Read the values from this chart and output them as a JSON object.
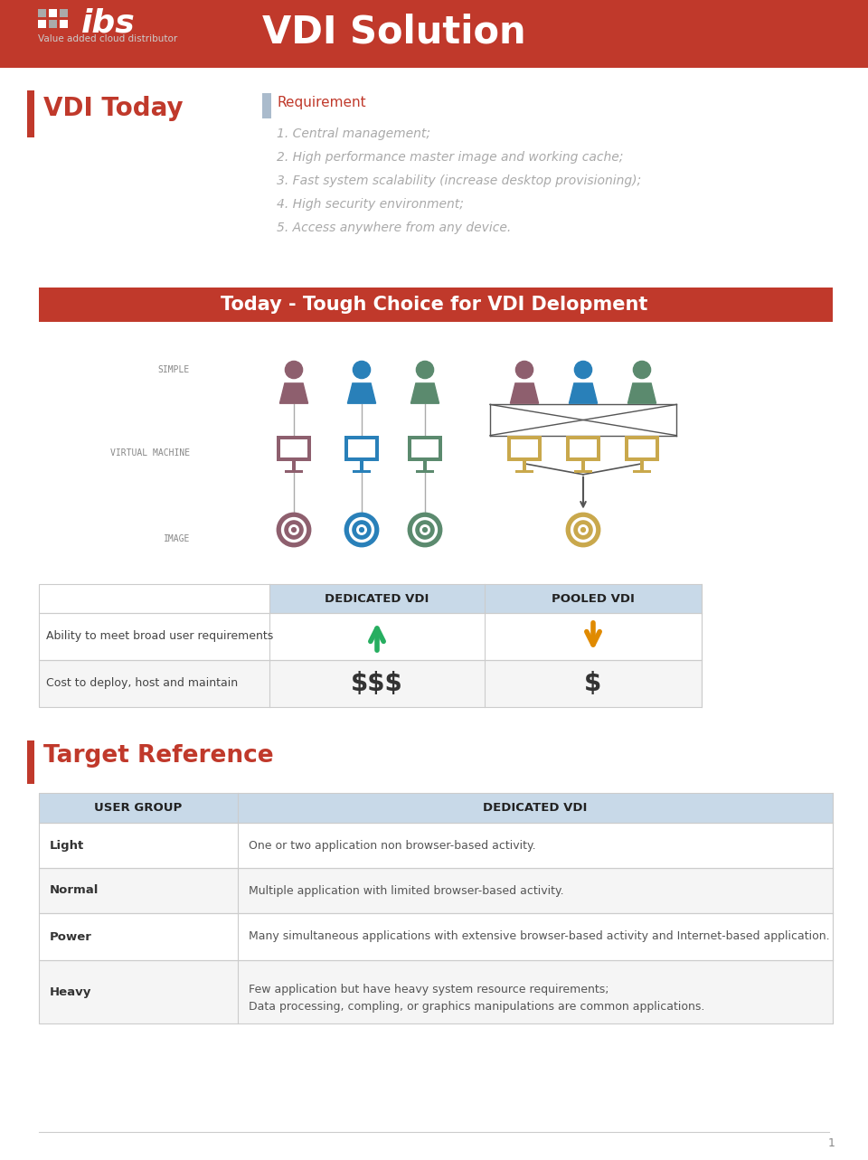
{
  "title": "VDI Solution",
  "subtitle_tag": "Value added cloud distributor",
  "header_bg": "#c0392b",
  "header_text_color": "#ffffff",
  "section1_title": "VDI Today",
  "section1_accent": "#c0392b",
  "req_title": "Requirement",
  "req_items": [
    "1. Central management;",
    "2. High performance master image and working cache;",
    "3. Fast system scalability (increase desktop provisioning);",
    "4. High security environment;",
    "5. Access anywhere from any device."
  ],
  "tough_choice_title": "Today - Tough Choice for VDI Delopment",
  "tough_bg": "#c0392b",
  "tough_text_color": "#ffffff",
  "row_labels": [
    "SIMPLE",
    "VIRTUAL MACHINE",
    "IMAGE"
  ],
  "dedicated_label": "DEDICATED VDI",
  "pooled_label": "POOLED VDI",
  "ability_label": "Ability to meet broad user requirements",
  "cost_label": "Cost to deploy, host and maintain",
  "dedicated_arrow_color": "#27ae60",
  "pooled_arrow_color": "#e08a00",
  "dedicated_cost": "$$$",
  "pooled_cost": "$",
  "person_colors_dedicated": [
    "#8e5f6e",
    "#2980b9",
    "#5b8a6e"
  ],
  "person_colors_pooled": [
    "#8e5f6e",
    "#2980b9",
    "#5b8a6e"
  ],
  "monitor_colors_dedicated": [
    "#8e5f6e",
    "#2980b9",
    "#5b8a6e"
  ],
  "monitor_color_pooled": "#c9a84c",
  "disk_colors_dedicated": [
    "#8e5f6e",
    "#2980b9",
    "#5b8a6e"
  ],
  "disk_color_pooled": "#c9a84c",
  "section2_title": "Target Reference",
  "section2_accent": "#c0392b",
  "table_header_bg": "#c8d9e8",
  "table_header_color": "#333333",
  "table_row_bg1": "#ffffff",
  "table_row_bg2": "#f5f5f5",
  "table_col1": "USER GROUP",
  "table_col2": "DEDICATED VDI",
  "table_rows": [
    [
      "Light",
      "One or two application non browser-based activity."
    ],
    [
      "Normal",
      "Multiple application with limited browser-based activity."
    ],
    [
      "Power",
      "Many simultaneous applications with extensive browser-based activity and Internet-based application."
    ],
    [
      "Heavy",
      "Few application but have heavy system resource requirements;\nData processing, compling, or graphics manipulations are common applications."
    ]
  ],
  "bg_color": "#ffffff",
  "text_color": "#333333",
  "req_color": "#aaaaaa",
  "page_number": "1",
  "logo_color1": "#c0392b",
  "logo_color2": "#aaaaaa",
  "cross_color": "#555555",
  "line_color": "#aaaaaa",
  "table_border_color": "#cccccc"
}
